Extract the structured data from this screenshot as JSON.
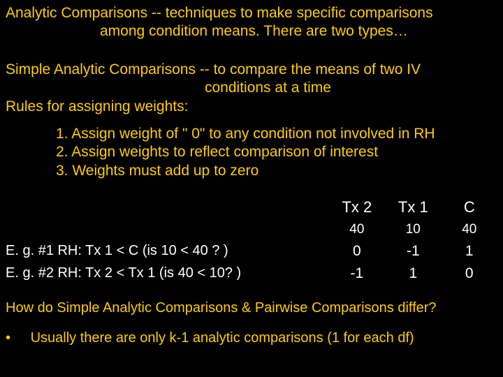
{
  "heading": {
    "line1": "Analytic Comparisons -- techniques to make specific comparisons",
    "line2": "among condition means.  There are two types…"
  },
  "simple": {
    "def_line1": "Simple Analytic Comparisons -- to compare the means of two IV",
    "def_line2": "conditions at a time",
    "rules_title": "Rules for assigning weights:",
    "rule1": "1.  Assign weight of \" 0\" to any condition not involved in RH",
    "rule2": "2.  Assign weights to reflect comparison of interest",
    "rule3": "3.  Weights must add up to zero"
  },
  "table": {
    "headers": {
      "c1": "Tx 2",
      "c2": "Tx 1",
      "c3": "C"
    },
    "means": {
      "c1": "40",
      "c2": "10",
      "c3": "40"
    },
    "row1": {
      "label": "E. g. #1   RH:   Tx 1 < C   (is 10 <  40 ? )",
      "c1": "0",
      "c2": "-1",
      "c3": "1"
    },
    "row2": {
      "label": "E. g. #2   RH:   Tx 2 < Tx 1    (is 40 < 10? )",
      "c1": "-1",
      "c2": "1",
      "c3": "0"
    }
  },
  "question": "How do Simple Analytic Comparisons & Pairwise Comparisons differ?",
  "bullet": {
    "dot": "•",
    "text": "Usually there are only k-1 analytic comparisons (1 for each df)"
  },
  "colors": {
    "bg": "#000000",
    "accent": "#ffcc00",
    "text": "#ffffff"
  }
}
